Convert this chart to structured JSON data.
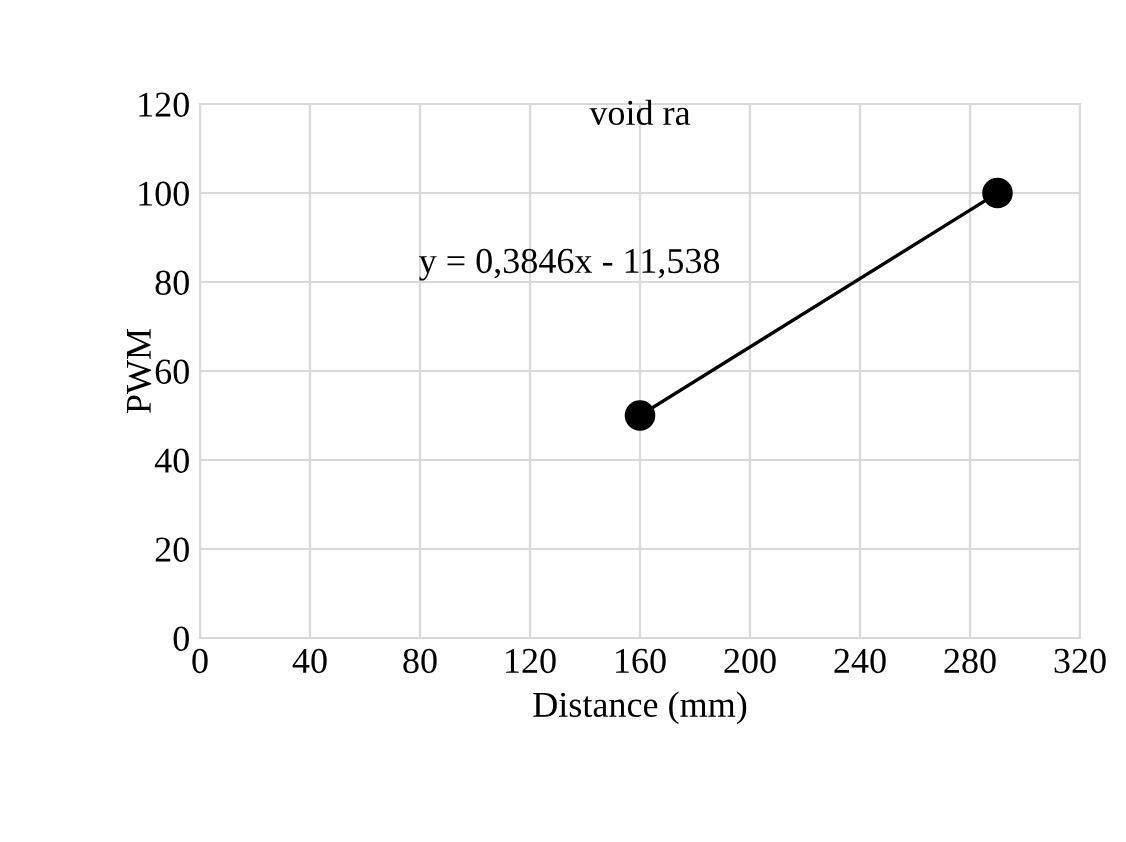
{
  "chart_data": {
    "type": "line",
    "title": "void ra",
    "xlabel": "Distance (mm)",
    "ylabel": "PWM",
    "x": [
      160,
      290
    ],
    "series": [
      {
        "color": "#000000",
        "values": [
          50,
          100
        ]
      }
    ],
    "marker": "circle",
    "line_style": "solid",
    "xlim": [
      0,
      320
    ],
    "xticks": [
      0,
      40,
      80,
      120,
      160,
      200,
      240,
      280,
      320
    ],
    "ylim": [
      0,
      120
    ],
    "yticks": [
      0,
      20,
      40,
      60,
      80,
      100,
      120
    ],
    "grid": true,
    "annotations": [
      "y = 0,3846x - 11,538"
    ]
  }
}
